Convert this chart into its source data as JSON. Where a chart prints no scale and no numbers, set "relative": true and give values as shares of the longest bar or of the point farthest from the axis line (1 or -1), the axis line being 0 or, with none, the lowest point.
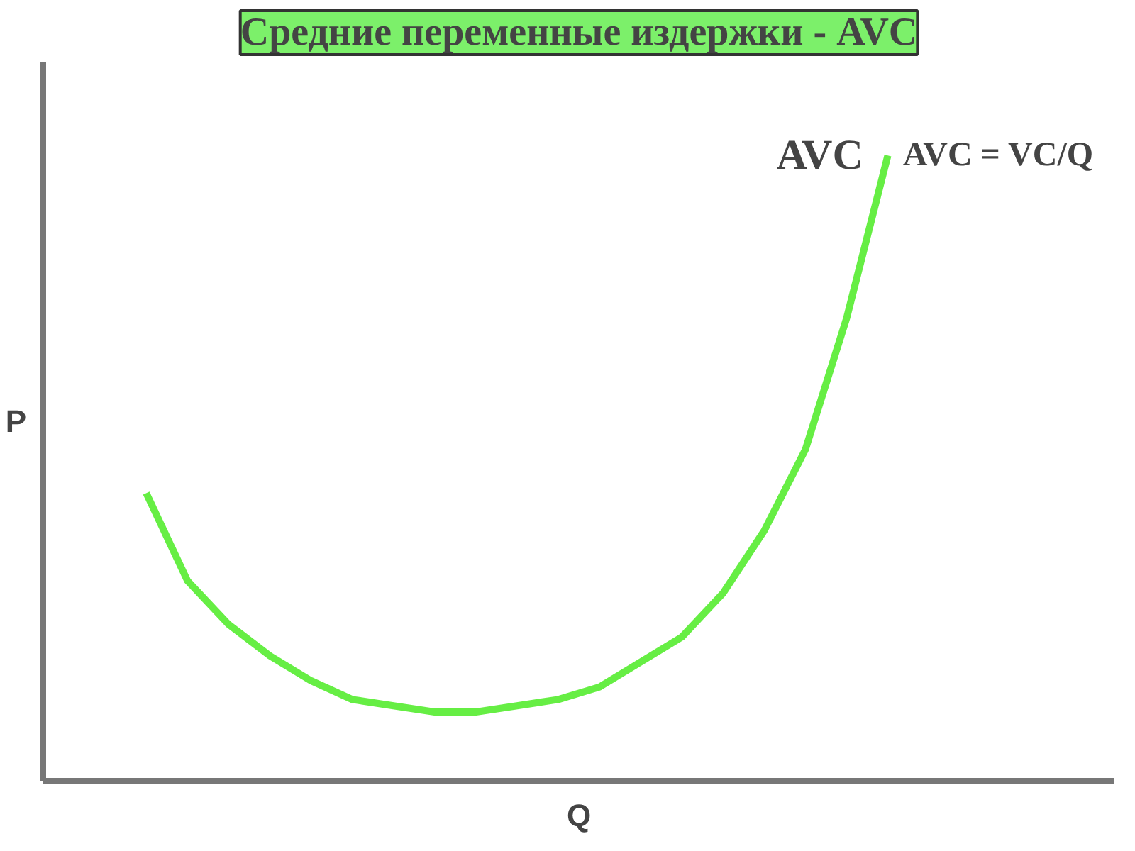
{
  "chart_data": {
    "type": "line",
    "title": "Средние переменные издержки - AVC",
    "xlabel": "Q",
    "ylabel": "P",
    "relative": true,
    "grid": false,
    "legend": false,
    "categories": [
      null,
      null,
      null,
      null,
      null,
      null,
      null,
      null,
      null,
      null,
      null,
      null,
      null,
      null,
      null,
      null,
      null,
      null,
      null,
      null,
      null,
      null,
      null,
      null,
      null,
      null
    ],
    "series": [
      {
        "name": "AVC",
        "color": "#66ee44",
        "values": [
          null,
          null,
          0.46,
          0.32,
          0.25,
          0.2,
          0.16,
          0.13,
          0.12,
          0.11,
          0.11,
          0.12,
          0.13,
          0.15,
          0.19,
          0.23,
          0.3,
          0.4,
          0.53,
          0.74,
          1,
          null,
          null,
          null,
          null,
          null
        ]
      }
    ],
    "annotations": [
      "AVC = VC/Q"
    ]
  }
}
